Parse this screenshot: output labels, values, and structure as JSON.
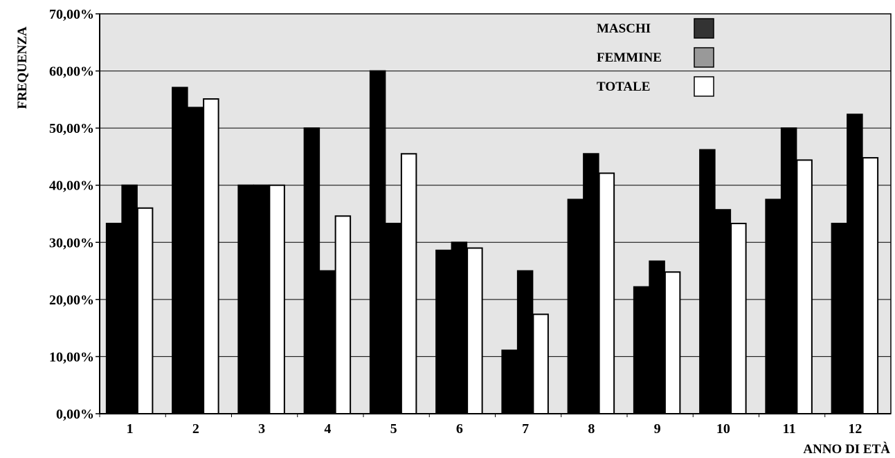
{
  "chart_data": {
    "type": "bar",
    "title": "",
    "xlabel": "ANNO DI ETÀ",
    "ylabel": "FREQUENZA",
    "ylim": [
      0,
      70
    ],
    "yticks": [
      "0,00%",
      "10,00%",
      "20,00%",
      "30,00%",
      "40,00%",
      "50,00%",
      "60,00%",
      "70,00%"
    ],
    "grid": true,
    "legend_position": "top-right",
    "categories": [
      "1",
      "2",
      "3",
      "4",
      "5",
      "6",
      "7",
      "8",
      "9",
      "10",
      "11",
      "12"
    ],
    "series": [
      {
        "name": "MASCHI",
        "color": "#000000",
        "values": [
          33.3,
          57.1,
          40.0,
          50.0,
          60.0,
          28.6,
          11.1,
          37.5,
          22.2,
          46.2,
          37.5,
          33.3
        ]
      },
      {
        "name": "FEMMINE",
        "color": "#000000",
        "values": [
          40.0,
          53.6,
          40.0,
          25.0,
          33.3,
          30.0,
          25.0,
          45.5,
          26.7,
          35.7,
          50.0,
          52.4
        ]
      },
      {
        "name": "TOTALE",
        "color": "#ffffff",
        "values": [
          36.0,
          55.1,
          40.0,
          34.6,
          45.5,
          29.0,
          17.4,
          42.1,
          24.8,
          33.3,
          44.4,
          44.8
        ]
      }
    ],
    "legend": [
      {
        "label": "MASCHI",
        "swatch_color": "#333333"
      },
      {
        "label": "FEMMINE",
        "swatch_color": "#999999"
      },
      {
        "label": "TOTALE",
        "swatch_color": "#ffffff"
      }
    ],
    "plot_background": "#e5e5e5"
  }
}
